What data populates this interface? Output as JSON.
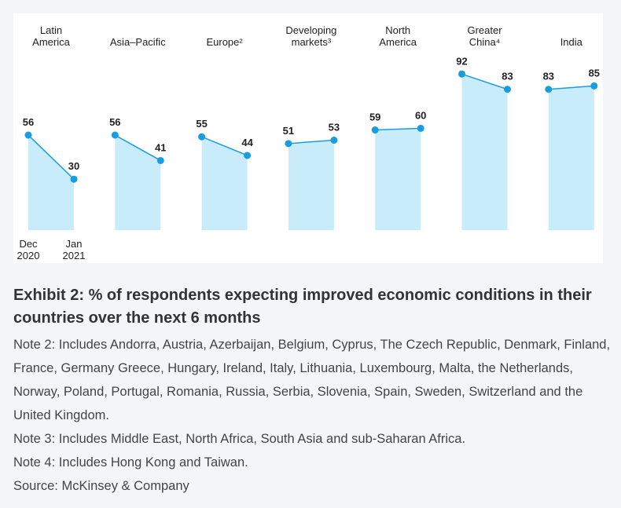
{
  "chart_data": {
    "type": "area",
    "x": [
      "Dec 2020",
      "Jan 2021"
    ],
    "series": [
      {
        "name": "Latin America",
        "values": [
          56,
          30
        ]
      },
      {
        "name": "Asia–Pacific",
        "values": [
          56,
          41
        ]
      },
      {
        "name": "Europe²",
        "values": [
          55,
          44
        ]
      },
      {
        "name": "Developing markets³",
        "values": [
          51,
          53
        ]
      },
      {
        "name": "North America",
        "values": [
          59,
          60
        ]
      },
      {
        "name": "Greater China⁴",
        "values": [
          92,
          83
        ]
      },
      {
        "name": "India",
        "values": [
          83,
          85
        ]
      }
    ],
    "ylim": [
      0,
      100
    ],
    "color": "#1a9de0",
    "area_color": "#c9ecfb"
  },
  "caption": {
    "title": "Exhibit 2: % of respondents expecting improved economic conditions in their countries over the next 6 months",
    "notes": [
      "Note 2: Includes Andorra, Austria, Azerbaijan, Belgium, Cyprus, The Czech Republic, Denmark, Finland, France, Germany Greece, Hungary, Ireland, Italy, Lithuania, Luxembourg, Malta, the Netherlands, Norway, Poland, Portugal, Romania, Russia, Serbia, Slovenia, Spain, Sweden, Switzerland and the United Kingdom.",
      "Note 3: Includes Middle East, North Africa, South Asia and sub-Saharan Africa.",
      "Note 4: Includes Hong Kong and Taiwan."
    ],
    "source": "Source: McKinsey & Company"
  }
}
